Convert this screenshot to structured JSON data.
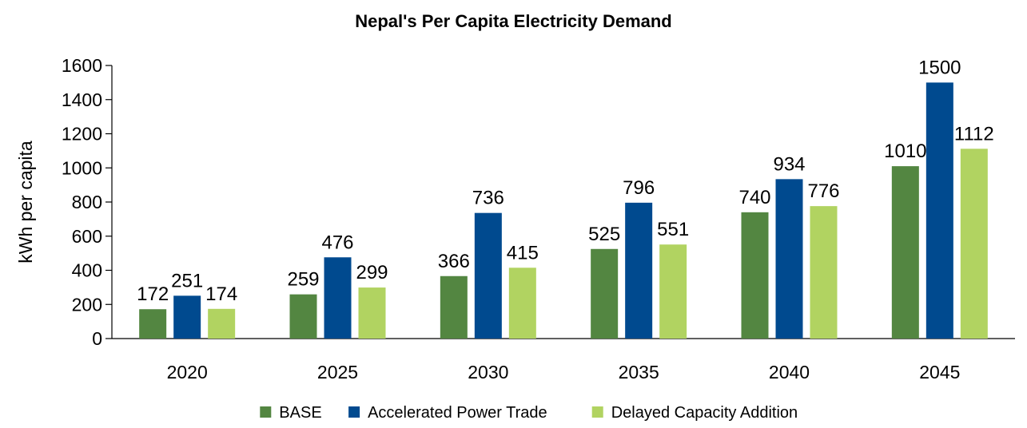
{
  "chart_data": {
    "type": "bar",
    "title": "Nepal's Per Capita Electricity Demand",
    "xlabel": "",
    "ylabel": "kWh per capita",
    "categories": [
      "2020",
      "2025",
      "2030",
      "2035",
      "2040",
      "2045"
    ],
    "series": [
      {
        "name": "BASE",
        "color": "#538641",
        "values": [
          172,
          259,
          366,
          525,
          740,
          1010
        ]
      },
      {
        "name": "Accelerated Power Trade",
        "color": "#004A8F",
        "values": [
          251,
          476,
          736,
          796,
          934,
          1500
        ]
      },
      {
        "name": "Delayed Capacity Addition",
        "color": "#B1D361",
        "values": [
          174,
          299,
          415,
          551,
          776,
          1112
        ]
      }
    ],
    "yticks": [
      0,
      200,
      400,
      600,
      800,
      1000,
      1200,
      1400,
      1600
    ],
    "ylim": [
      0,
      1600
    ],
    "grid": false,
    "legend_position": "bottom",
    "data_labels": true
  }
}
